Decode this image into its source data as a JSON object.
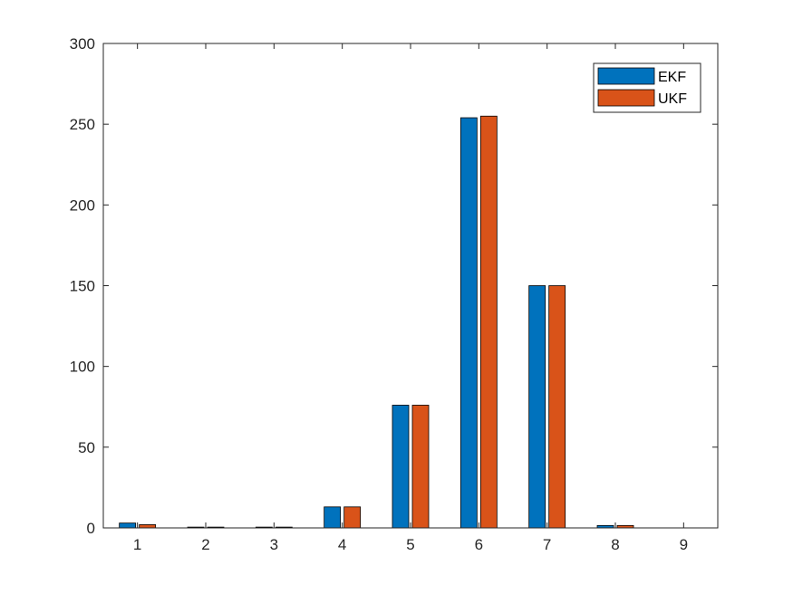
{
  "chart_data": {
    "type": "bar",
    "categories": [
      "1",
      "2",
      "3",
      "4",
      "5",
      "6",
      "7",
      "8",
      "9"
    ],
    "series": [
      {
        "name": "EKF",
        "color": "#0072BD",
        "values": [
          3,
          0.5,
          0.5,
          13,
          76,
          254,
          150,
          1.5,
          0
        ]
      },
      {
        "name": "UKF",
        "color": "#D95319",
        "values": [
          2,
          0.5,
          0.5,
          13,
          76,
          255,
          150,
          1.5,
          0
        ]
      }
    ],
    "ylim": [
      0,
      300
    ],
    "yticks": [
      "0",
      "50",
      "100",
      "150",
      "200",
      "250",
      "300"
    ],
    "xlabel": "",
    "ylabel": "",
    "title": "",
    "grid": false,
    "legend_position": "top-right"
  }
}
